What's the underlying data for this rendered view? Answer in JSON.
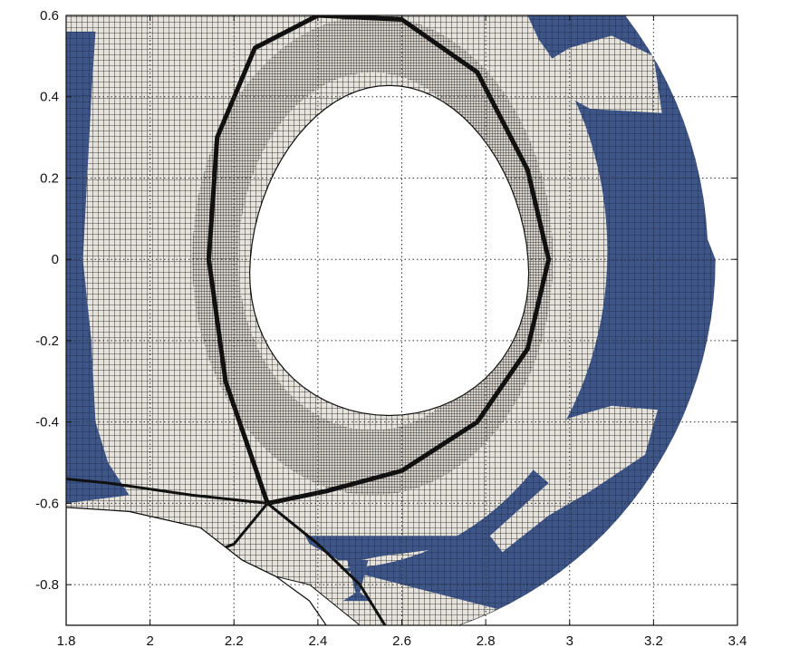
{
  "chart_data": {
    "type": "mesh",
    "title": "",
    "xlabel": "",
    "ylabel": "",
    "xlim": [
      1.8,
      3.4
    ],
    "ylim": [
      -0.9,
      0.6
    ],
    "grid": true,
    "grid_style": "dotted",
    "xticks": [
      1.8,
      2.0,
      2.2,
      2.4,
      2.6,
      2.8,
      3.0,
      3.2,
      3.4
    ],
    "yticks": [
      -0.8,
      -0.6,
      -0.4,
      -0.2,
      0.0,
      0.2,
      0.4,
      0.6
    ],
    "xtick_labels": [
      "1.8",
      "2",
      "2.2",
      "2.4",
      "2.6",
      "2.8",
      "3",
      "3.2",
      "3.4"
    ],
    "ytick_labels": [
      "-0.8",
      "-0.6",
      "-0.4",
      "-0.2",
      "0",
      "0.2",
      "0.4",
      "0.6"
    ],
    "colors": {
      "mesh_line": "#111111",
      "cell_fill": "#e6e2dc",
      "region_fill": "#3d5587",
      "hole_fill": "#ffffff"
    },
    "plasma_boundary": {
      "center": [
        2.45,
        0.0
      ],
      "r_inner_min": 2.18,
      "r_outer_max": 2.95,
      "z_max": 0.46,
      "z_min": -0.4,
      "x_point": [
        2.28,
        -0.6
      ]
    },
    "outer_boundary_r_max": 3.33
  }
}
